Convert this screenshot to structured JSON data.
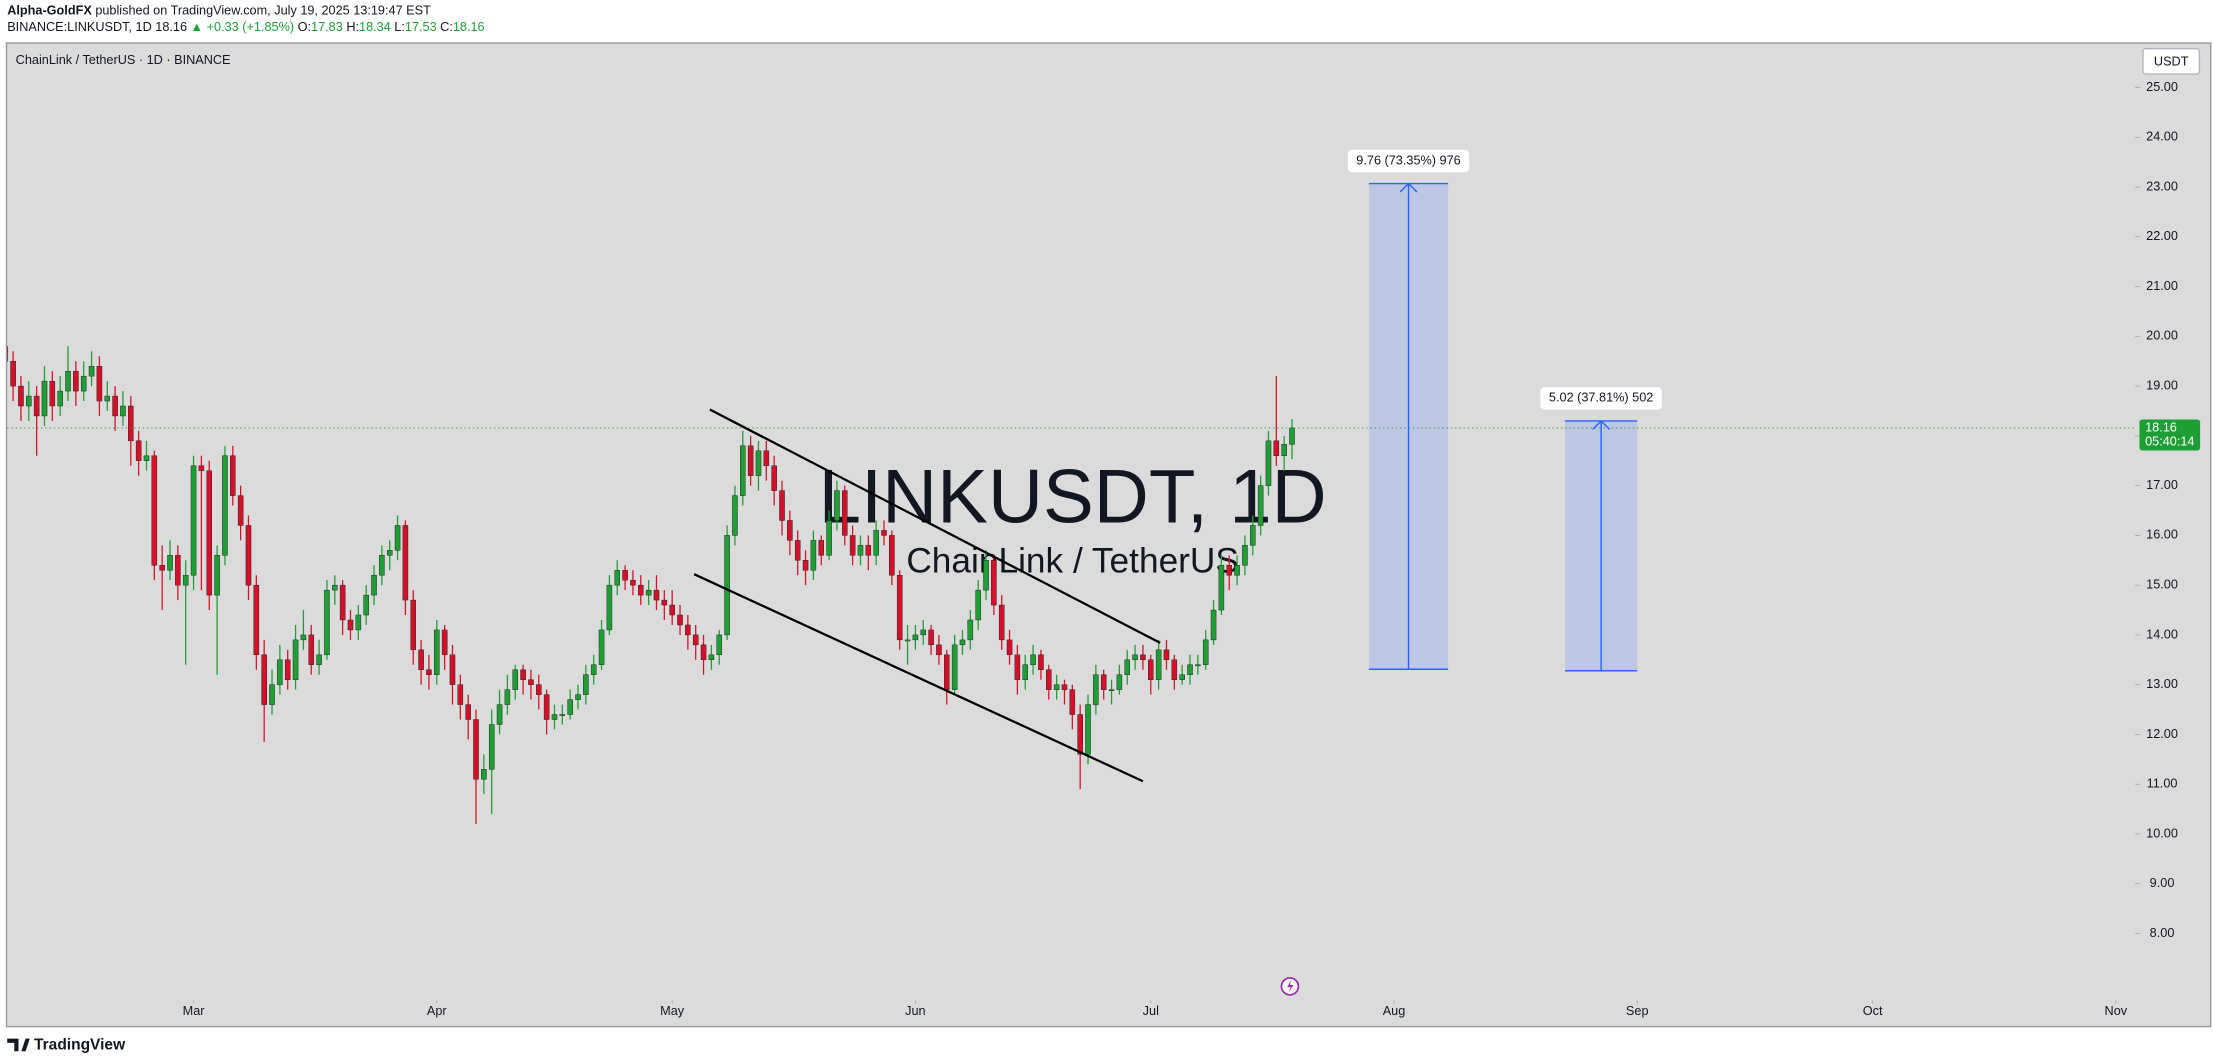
{
  "header": {
    "author": "Alpha-GoldFX",
    "published": "published on TradingView.com, July 19, 2025 13:19:47 EST",
    "symbol": "BINANCE:LINKUSDT, 1D",
    "change": "▲ +0.33 (+1.85%)",
    "ohlc_labels": [
      "O:",
      "H:",
      "L:",
      "C:"
    ]
  },
  "footer": {
    "brand": "TradingView"
  },
  "chart_data": {
    "type": "candlestick",
    "legend": "ChainLink / TetherUS · 1D · BINANCE",
    "watermark": "LINKUSDT, 1D",
    "watermark_sub": "ChainLink / TetherUS",
    "currency": "USDT",
    "countdown": "05:40:14",
    "up_color": "#1e9e35",
    "down_color": "#d3112a",
    "xlim": [
      0.25,
      271.47
    ],
    "ylim": [
      6.71,
      25.88
    ],
    "xticks": [
      {
        "value": 24,
        "label": "Mar"
      },
      {
        "value": 55,
        "label": "Apr"
      },
      {
        "value": 85,
        "label": "May"
      },
      {
        "value": 116,
        "label": "Jun"
      },
      {
        "value": 146,
        "label": "Jul"
      },
      {
        "value": 177,
        "label": "Aug"
      },
      {
        "value": 208,
        "label": "Sep"
      },
      {
        "value": 238,
        "label": "Oct"
      },
      {
        "value": 269,
        "label": "Nov"
      }
    ],
    "yticks": [
      {
        "value": 8,
        "label": "8.00"
      },
      {
        "value": 9,
        "label": "9.00"
      },
      {
        "value": 10,
        "label": "10.00"
      },
      {
        "value": 11,
        "label": "11.00"
      },
      {
        "value": 12,
        "label": "12.00"
      },
      {
        "value": 13,
        "label": "13.00"
      },
      {
        "value": 14,
        "label": "14.00"
      },
      {
        "value": 15,
        "label": "15.00"
      },
      {
        "value": 16,
        "label": "16.00"
      },
      {
        "value": 17,
        "label": "17.00"
      },
      {
        "value": 18,
        "label": "18.00"
      },
      {
        "value": 19,
        "label": "19.00"
      },
      {
        "value": 20,
        "label": "20.00"
      },
      {
        "value": 21,
        "label": "21.00"
      },
      {
        "value": 22,
        "label": "22.00"
      },
      {
        "value": 23,
        "label": "23.00"
      },
      {
        "value": 24,
        "label": "24.00"
      },
      {
        "value": 25,
        "label": "25.00"
      }
    ],
    "ohlc": [
      [
        19.8,
        20.0,
        19.2,
        19.5
      ],
      [
        19.5,
        19.7,
        18.7,
        19.0
      ],
      [
        19.0,
        19.2,
        18.3,
        18.6
      ],
      [
        18.6,
        19.1,
        18.3,
        18.8
      ],
      [
        18.8,
        19.0,
        17.6,
        18.4
      ],
      [
        18.4,
        19.4,
        18.2,
        19.1
      ],
      [
        19.1,
        19.3,
        18.3,
        18.6
      ],
      [
        18.6,
        19.2,
        18.4,
        18.9
      ],
      [
        18.9,
        19.8,
        18.7,
        19.3
      ],
      [
        19.3,
        19.5,
        18.6,
        18.9
      ],
      [
        18.9,
        19.5,
        18.7,
        19.2
      ],
      [
        19.2,
        19.7,
        19.0,
        19.4
      ],
      [
        19.4,
        19.6,
        18.4,
        18.7
      ],
      [
        18.7,
        19.1,
        18.5,
        18.8
      ],
      [
        18.8,
        19.0,
        18.1,
        18.4
      ],
      [
        18.4,
        18.9,
        18.2,
        18.6
      ],
      [
        18.6,
        18.8,
        17.4,
        17.9
      ],
      [
        17.9,
        18.1,
        17.2,
        17.5
      ],
      [
        17.5,
        17.9,
        17.3,
        17.6
      ],
      [
        17.6,
        17.7,
        15.1,
        15.4
      ],
      [
        15.4,
        15.8,
        14.5,
        15.3
      ],
      [
        15.3,
        15.9,
        15.1,
        15.6
      ],
      [
        15.6,
        15.8,
        14.7,
        15.0
      ],
      [
        15.0,
        15.5,
        13.4,
        15.2
      ],
      [
        15.2,
        17.6,
        14.9,
        17.4
      ],
      [
        17.4,
        17.6,
        14.9,
        17.3
      ],
      [
        17.3,
        17.5,
        14.5,
        14.8
      ],
      [
        14.8,
        15.8,
        13.2,
        15.6
      ],
      [
        15.6,
        17.8,
        15.4,
        17.6
      ],
      [
        17.6,
        17.8,
        16.6,
        16.8
      ],
      [
        16.8,
        17.0,
        15.9,
        16.2
      ],
      [
        16.2,
        16.4,
        14.7,
        15.0
      ],
      [
        15.0,
        15.2,
        13.3,
        13.6
      ],
      [
        13.6,
        13.9,
        11.85,
        12.6
      ],
      [
        12.6,
        13.3,
        12.4,
        13.0
      ],
      [
        13.0,
        13.8,
        12.8,
        13.5
      ],
      [
        13.5,
        13.7,
        12.9,
        13.1
      ],
      [
        13.1,
        14.2,
        12.9,
        13.9
      ],
      [
        13.9,
        14.5,
        13.7,
        14.0
      ],
      [
        14.0,
        14.2,
        13.2,
        13.4
      ],
      [
        13.4,
        13.9,
        13.2,
        13.6
      ],
      [
        13.6,
        15.1,
        13.5,
        14.9
      ],
      [
        14.9,
        15.2,
        14.6,
        15.0
      ],
      [
        15.0,
        15.1,
        14.0,
        14.3
      ],
      [
        14.3,
        14.5,
        13.9,
        14.1
      ],
      [
        14.1,
        14.6,
        13.9,
        14.4
      ],
      [
        14.4,
        15.0,
        14.2,
        14.8
      ],
      [
        14.8,
        15.4,
        14.6,
        15.2
      ],
      [
        15.2,
        15.8,
        15.0,
        15.6
      ],
      [
        15.6,
        15.9,
        15.3,
        15.7
      ],
      [
        15.7,
        16.4,
        15.5,
        16.2
      ],
      [
        16.2,
        16.3,
        14.4,
        14.7
      ],
      [
        14.7,
        14.9,
        13.4,
        13.7
      ],
      [
        13.7,
        13.9,
        13.0,
        13.3
      ],
      [
        13.3,
        13.6,
        12.9,
        13.2
      ],
      [
        13.2,
        14.3,
        13.0,
        14.1
      ],
      [
        14.1,
        14.2,
        13.3,
        13.6
      ],
      [
        13.6,
        13.8,
        12.6,
        13.0
      ],
      [
        13.0,
        13.2,
        12.3,
        12.6
      ],
      [
        12.6,
        12.8,
        11.9,
        12.3
      ],
      [
        12.3,
        12.5,
        10.2,
        11.1
      ],
      [
        11.1,
        11.6,
        10.8,
        11.3
      ],
      [
        11.3,
        12.5,
        10.4,
        12.2
      ],
      [
        12.2,
        12.9,
        12.0,
        12.6
      ],
      [
        12.6,
        13.2,
        12.4,
        12.9
      ],
      [
        12.9,
        13.4,
        12.7,
        13.3
      ],
      [
        13.3,
        13.4,
        12.8,
        13.1
      ],
      [
        13.1,
        13.3,
        12.7,
        13.0
      ],
      [
        13.0,
        13.2,
        12.5,
        12.8
      ],
      [
        12.8,
        12.9,
        12.0,
        12.3
      ],
      [
        12.3,
        12.6,
        12.1,
        12.4
      ],
      [
        12.4,
        12.6,
        12.2,
        12.4
      ],
      [
        12.4,
        12.9,
        12.3,
        12.7
      ],
      [
        12.7,
        13.0,
        12.5,
        12.8
      ],
      [
        12.8,
        13.4,
        12.6,
        13.2
      ],
      [
        13.2,
        13.6,
        13.0,
        13.4
      ],
      [
        13.4,
        14.3,
        13.3,
        14.1
      ],
      [
        14.1,
        15.2,
        14.0,
        15.0
      ],
      [
        15.0,
        15.5,
        14.8,
        15.3
      ],
      [
        15.3,
        15.4,
        14.9,
        15.1
      ],
      [
        15.1,
        15.3,
        14.8,
        15.0
      ],
      [
        15.0,
        15.2,
        14.6,
        14.8
      ],
      [
        14.8,
        15.1,
        14.6,
        14.9
      ],
      [
        14.9,
        15.2,
        14.5,
        14.7
      ],
      [
        14.7,
        14.9,
        14.3,
        14.6
      ],
      [
        14.6,
        14.9,
        14.2,
        14.4
      ],
      [
        14.4,
        14.6,
        14.0,
        14.2
      ],
      [
        14.2,
        14.4,
        13.7,
        14.0
      ],
      [
        14.0,
        14.2,
        13.5,
        13.8
      ],
      [
        13.8,
        14.0,
        13.2,
        13.5
      ],
      [
        13.5,
        13.8,
        13.3,
        13.6
      ],
      [
        13.6,
        14.1,
        13.4,
        14.0
      ],
      [
        14.0,
        16.2,
        13.9,
        16.0
      ],
      [
        16.0,
        17.0,
        15.8,
        16.8
      ],
      [
        16.8,
        18.1,
        16.6,
        17.8
      ],
      [
        17.8,
        18.0,
        17.0,
        17.2
      ],
      [
        17.2,
        17.9,
        16.9,
        17.7
      ],
      [
        17.7,
        17.9,
        17.1,
        17.4
      ],
      [
        17.4,
        17.6,
        16.6,
        16.9
      ],
      [
        16.9,
        17.1,
        16.0,
        16.3
      ],
      [
        16.3,
        16.5,
        15.6,
        15.9
      ],
      [
        15.9,
        16.1,
        15.2,
        15.5
      ],
      [
        15.5,
        15.7,
        15.0,
        15.3
      ],
      [
        15.3,
        16.1,
        15.1,
        15.9
      ],
      [
        15.9,
        16.0,
        15.4,
        15.6
      ],
      [
        15.6,
        16.5,
        15.5,
        16.3
      ],
      [
        16.3,
        17.1,
        16.1,
        16.9
      ],
      [
        16.9,
        17.0,
        15.8,
        16.0
      ],
      [
        16.0,
        16.2,
        15.4,
        15.6
      ],
      [
        15.6,
        16.0,
        15.4,
        15.8
      ],
      [
        15.8,
        16.0,
        15.3,
        15.6
      ],
      [
        15.6,
        16.3,
        15.4,
        16.1
      ],
      [
        16.1,
        16.3,
        15.8,
        16.0
      ],
      [
        16.0,
        16.1,
        15.0,
        15.2
      ],
      [
        15.2,
        15.3,
        13.7,
        13.9
      ],
      [
        13.9,
        14.2,
        13.4,
        13.9
      ],
      [
        13.9,
        14.2,
        13.7,
        14.0
      ],
      [
        14.0,
        14.3,
        13.8,
        14.1
      ],
      [
        14.1,
        14.2,
        13.6,
        13.8
      ],
      [
        13.8,
        14.0,
        13.4,
        13.6
      ],
      [
        13.6,
        13.7,
        12.6,
        12.9
      ],
      [
        12.9,
        14.0,
        12.8,
        13.8
      ],
      [
        13.8,
        14.1,
        13.6,
        13.9
      ],
      [
        13.9,
        14.5,
        13.7,
        14.3
      ],
      [
        14.3,
        15.1,
        14.1,
        14.9
      ],
      [
        14.9,
        15.7,
        14.7,
        15.5
      ],
      [
        15.5,
        15.6,
        14.4,
        14.6
      ],
      [
        14.6,
        14.8,
        13.7,
        13.9
      ],
      [
        13.9,
        14.1,
        13.4,
        13.6
      ],
      [
        13.6,
        13.8,
        12.8,
        13.1
      ],
      [
        13.1,
        13.6,
        12.9,
        13.4
      ],
      [
        13.4,
        13.8,
        13.2,
        13.6
      ],
      [
        13.6,
        13.7,
        13.1,
        13.3
      ],
      [
        13.3,
        13.4,
        12.7,
        12.9
      ],
      [
        12.9,
        13.2,
        12.7,
        13.0
      ],
      [
        13.0,
        13.1,
        12.6,
        12.9
      ],
      [
        12.9,
        13.0,
        12.1,
        12.4
      ],
      [
        12.4,
        12.6,
        10.9,
        11.6
      ],
      [
        11.6,
        12.8,
        11.4,
        12.6
      ],
      [
        12.6,
        13.4,
        12.4,
        13.2
      ],
      [
        13.2,
        13.3,
        12.7,
        12.9
      ],
      [
        12.9,
        13.1,
        12.6,
        12.9
      ],
      [
        12.9,
        13.4,
        12.8,
        13.2
      ],
      [
        13.2,
        13.7,
        13.0,
        13.5
      ],
      [
        13.5,
        13.8,
        13.3,
        13.6
      ],
      [
        13.6,
        13.8,
        13.3,
        13.5
      ],
      [
        13.5,
        13.6,
        12.8,
        13.1
      ],
      [
        13.1,
        13.9,
        12.9,
        13.7
      ],
      [
        13.7,
        13.9,
        13.3,
        13.5
      ],
      [
        13.5,
        13.6,
        12.9,
        13.1
      ],
      [
        13.1,
        13.4,
        13.0,
        13.2
      ],
      [
        13.2,
        13.6,
        13.0,
        13.4
      ],
      [
        13.4,
        13.6,
        13.2,
        13.4
      ],
      [
        13.4,
        14.1,
        13.3,
        13.9
      ],
      [
        13.9,
        14.7,
        13.8,
        14.5
      ],
      [
        14.5,
        15.6,
        14.4,
        15.4
      ],
      [
        15.4,
        15.6,
        14.9,
        15.2
      ],
      [
        15.2,
        15.6,
        15.0,
        15.4
      ],
      [
        15.4,
        16.0,
        15.2,
        15.8
      ],
      [
        15.8,
        16.4,
        15.6,
        16.2
      ],
      [
        16.2,
        17.2,
        16.0,
        17.0
      ],
      [
        17.0,
        18.1,
        16.8,
        17.9
      ],
      [
        17.9,
        19.2,
        17.4,
        17.6
      ],
      [
        17.6,
        18.0,
        17.3,
        17.83
      ],
      [
        17.83,
        18.34,
        17.53,
        18.16
      ]
    ],
    "trendlines": [
      {
        "x": [
          89.8,
          147.2
        ],
        "y": [
          18.53,
          13.84
        ]
      },
      {
        "x": [
          87.8,
          145.0
        ],
        "y": [
          15.22,
          11.06
        ]
      }
    ],
    "measures": [
      {
        "x": [
          173.8,
          183.9
        ],
        "from": 13.31,
        "to": 23.07,
        "label": "9.76 (73.35%) 976"
      },
      {
        "x": [
          198.8,
          208.0
        ],
        "from": 13.28,
        "to": 18.3,
        "label": "5.02 (37.81%) 502"
      }
    ]
  }
}
